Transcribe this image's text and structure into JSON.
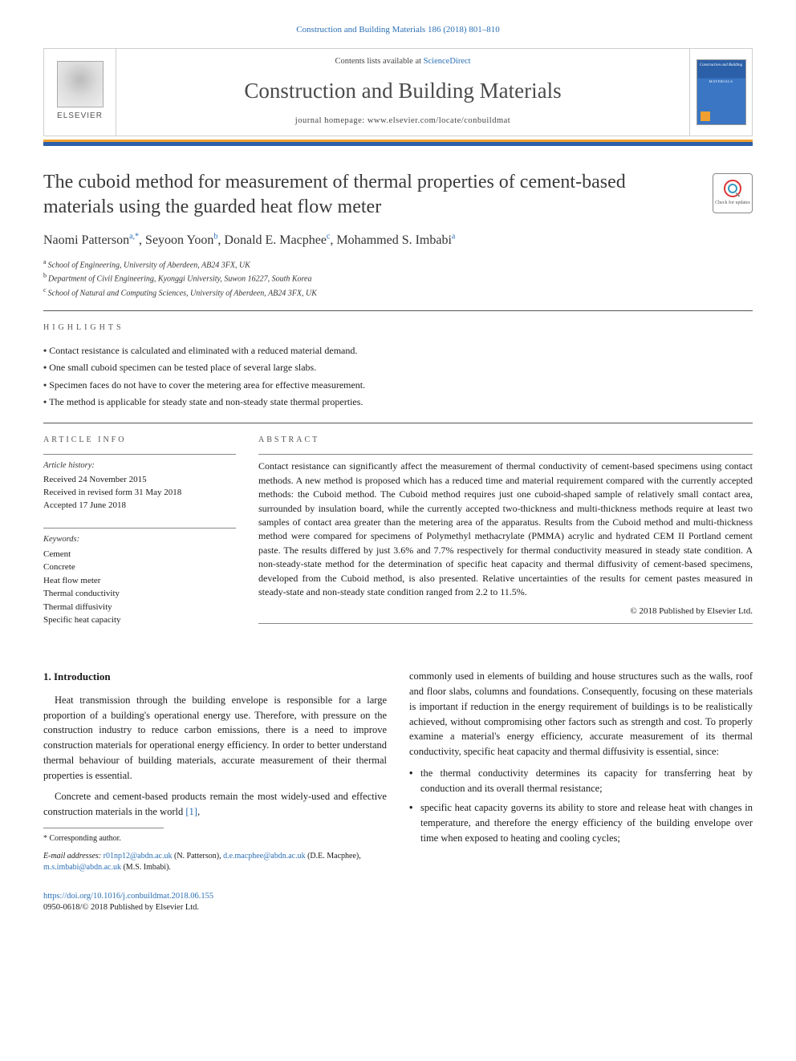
{
  "citation": "Construction and Building Materials 186 (2018) 801–810",
  "header": {
    "contents_prefix": "Contents lists available at ",
    "contents_link": "ScienceDirect",
    "journal_name": "Construction and Building Materials",
    "homepage_prefix": "journal homepage: ",
    "homepage_url": "www.elsevier.com/locate/conbuildmat",
    "publisher_word": "ELSEVIER",
    "cover_title": "Construction and Building",
    "cover_word": "MATERIALS"
  },
  "accent": {
    "bar_color": "#2b5fa8",
    "top_stripe": "#f0a030"
  },
  "title": "The cuboid method for measurement of thermal properties of cement-based materials using the guarded heat flow meter",
  "crossmark": "Check for updates",
  "authors_html": "Naomi Patterson",
  "authors": [
    {
      "name": "Naomi Patterson",
      "sup": "a,",
      "corr": true
    },
    {
      "name": "Seyoon Yoon",
      "sup": "b"
    },
    {
      "name": "Donald E. Macphee",
      "sup": "c"
    },
    {
      "name": "Mohammed S. Imbabi",
      "sup": "a"
    }
  ],
  "affiliations": [
    {
      "sup": "a",
      "text": "School of Engineering, University of Aberdeen, AB24 3FX, UK"
    },
    {
      "sup": "b",
      "text": "Department of Civil Engineering, Kyonggi University, Suwon 16227, South Korea"
    },
    {
      "sup": "c",
      "text": "School of Natural and Computing Sciences, University of Aberdeen, AB24 3FX, UK"
    }
  ],
  "highlights_label": "highlights",
  "highlights": [
    "Contact resistance is calculated and eliminated with a reduced material demand.",
    "One small cuboid specimen can be tested place of several large slabs.",
    "Specimen faces do not have to cover the metering area for effective measurement.",
    "The method is applicable for steady state and non-steady state thermal properties."
  ],
  "article_info_label": "article info",
  "abstract_label": "abstract",
  "history_label": "Article history:",
  "history": [
    "Received 24 November 2015",
    "Received in revised form 31 May 2018",
    "Accepted 17 June 2018"
  ],
  "keywords_label": "Keywords:",
  "keywords": [
    "Cement",
    "Concrete",
    "Heat flow meter",
    "Thermal conductivity",
    "Thermal diffusivity",
    "Specific heat capacity"
  ],
  "abstract": "Contact resistance can significantly affect the measurement of thermal conductivity of cement-based specimens using contact methods. A new method is proposed which has a reduced time and material requirement compared with the currently accepted methods: the Cuboid method. The Cuboid method requires just one cuboid-shaped sample of relatively small contact area, surrounded by insulation board, while the currently accepted two-thickness and multi-thickness methods require at least two samples of contact area greater than the metering area of the apparatus. Results from the Cuboid method and multi-thickness method were compared for specimens of Polymethyl methacrylate (PMMA) acrylic and hydrated CEM II Portland cement paste. The results differed by just 3.6% and 7.7% respectively for thermal conductivity measured in steady state condition. A non-steady-state method for the determination of specific heat capacity and thermal diffusivity of cement-based specimens, developed from the Cuboid method, is also presented. Relative uncertainties of the results for cement pastes measured in steady-state and non-steady state condition ranged from 2.2 to 11.5%.",
  "copyright": "© 2018 Published by Elsevier Ltd.",
  "intro_heading": "1. Introduction",
  "intro_p1": "Heat transmission through the building envelope is responsible for a large proportion of a building's operational energy use. Therefore, with pressure on the construction industry to reduce carbon emissions, there is a need to improve construction materials for operational energy efficiency. In order to better understand thermal behaviour of building materials, accurate measurement of their thermal properties is essential.",
  "intro_p2_a": "Concrete and cement-based products remain the most widely-used and effective construction materials in the world ",
  "intro_p2_ref": "[1]",
  "intro_p2_b": ",",
  "intro_p3": "commonly used in elements of building and house structures such as the walls, roof and floor slabs, columns and foundations. Consequently, focusing on these materials is important if reduction in the energy requirement of buildings is to be realistically achieved, without compromising other factors such as strength and cost. To properly examine a material's energy efficiency, accurate measurement of its thermal conductivity, specific heat capacity and thermal diffusivity is essential, since:",
  "body_bullets": [
    "the thermal conductivity determines its capacity for transferring heat by conduction and its overall thermal resistance;",
    "specific heat capacity governs its ability to store and release heat with changes in temperature, and therefore the energy efficiency of the building envelope over time when exposed to heating and cooling cycles;"
  ],
  "corresponding_label": "Corresponding author.",
  "email_label": "E-mail addresses:",
  "emails": [
    {
      "addr": "r01np12@abdn.ac.uk",
      "who": "(N. Patterson)"
    },
    {
      "addr": "d.e.macphee@abdn.ac.uk",
      "who": "(D.E. Macphee)"
    },
    {
      "addr": "m.s.imbabi@abdn.ac.uk",
      "who": "(M.S. Imbabi)"
    }
  ],
  "doi": "https://doi.org/10.1016/j.conbuildmat.2018.06.155",
  "issn_line": "0950-0618/© 2018 Published by Elsevier Ltd.",
  "colors": {
    "link": "#2a6fb5",
    "text": "#1a1a1a",
    "label": "#555555",
    "rule": "#555555"
  }
}
